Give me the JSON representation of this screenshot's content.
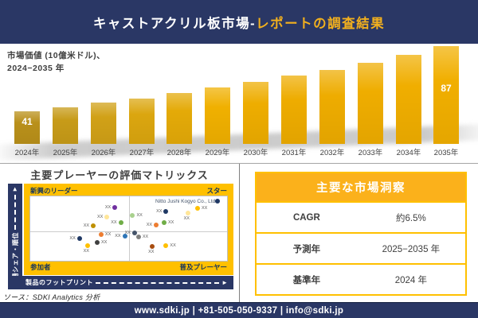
{
  "header": {
    "title_main": "キャストアクリル板市場-",
    "title_accent": "レポートの調査結果"
  },
  "bar_chart_label": {
    "line1": "市場価値 (10億米ドル)、",
    "line2": "2024−2035 年"
  },
  "matrix": {
    "title": "主要プレーヤーの評価マトリックス",
    "y_axis_label": "市場シェア・順位",
    "x_axis_label": "製品のフットプリント",
    "quadrants": {
      "top_left": "新興のリーダー",
      "top_right": "スター",
      "bottom_left": "参加者",
      "bottom_right": "普及プレーヤー"
    },
    "company_label": "Nitto Jushi Kogyo Co., Ltd."
  },
  "insights": {
    "title": "主要な市場洞察",
    "rows": [
      {
        "label": "CAGR",
        "value": "約6.5%"
      },
      {
        "label": "予測年",
        "value": "2025−2035 年"
      },
      {
        "label": "基準年",
        "value": "2024 年"
      }
    ]
  },
  "source": {
    "text": "ソース：SDKI Analytics 分析"
  },
  "footer": {
    "text": "www.sdki.jp | +81-505-050-9337 | info@sdki.jp"
  },
  "icons": {
    "axis_arrow": "►"
  },
  "colors": {
    "navy": "#2A3765",
    "matrix_gold": "#FFC000",
    "table_header_gold": "#FBB11B",
    "title_accent_gold": "#F2B01E",
    "divider_gray": "#9A9A9A",
    "text_dark": "#3F3F3F",
    "quadrant_text_navy": "#17365D",
    "bar_label_white": "#FFFFFF"
  },
  "chart_data": [
    {
      "type": "bar",
      "title": "市場価値 (10億米ドル)、2024−2035 年",
      "xlabel": "年",
      "ylabel": "市場価値 (10億米ドル)",
      "categories": [
        "2024年",
        "2025年",
        "2026年",
        "2027年",
        "2028年",
        "2029年",
        "2030年",
        "2031年",
        "2032年",
        "2033年",
        "2034年",
        "2035年"
      ],
      "values": [
        41,
        44,
        47,
        50,
        54,
        58,
        62,
        66,
        70,
        75,
        81,
        87
      ],
      "values_estimated": true,
      "first_label": "41",
      "last_label": "87",
      "bar_colors": [
        "#B9901A",
        "#C79B18",
        "#D1A117",
        "#DBA60F",
        "#E4AA08",
        "#F0B000",
        "#EEAD00",
        "#EEAC00",
        "#EEAC00",
        "#EFAD00",
        "#F0AE00",
        "#F1AF00"
      ],
      "grid": false,
      "legend": false
    },
    {
      "type": "scatter",
      "title": "主要プレーヤーの評価マトリックス",
      "xlabel": "製品のフットプリント",
      "ylabel": "市場シェア・順位",
      "quadrant_labels": [
        "新興のリーダー",
        "スター",
        "参加者",
        "普及プレーヤー"
      ],
      "annotation": "Nitto Jushi Kogyo Co., Ltd.",
      "points": [
        {
          "x": 43,
          "y": 17,
          "color": "#7030A0",
          "label": "XX",
          "label_pos": "left"
        },
        {
          "x": 95,
          "y": 8,
          "color": "#1F3864",
          "label": "",
          "label_pos": "none"
        },
        {
          "x": 85,
          "y": 19,
          "color": "#FFC000",
          "label": "XX",
          "label_pos": "right"
        },
        {
          "x": 80,
          "y": 26,
          "color": "#FFE699",
          "label": "XX",
          "label_pos": "below"
        },
        {
          "x": 69,
          "y": 23,
          "color": "#1F3864",
          "label": "XX",
          "label_pos": "left"
        },
        {
          "x": 52,
          "y": 30,
          "color": "#A9D18E",
          "label": "XX",
          "label_pos": "right"
        },
        {
          "x": 64,
          "y": 45,
          "color": "#ED7D31",
          "label": "XX",
          "label_pos": "left"
        },
        {
          "x": 68,
          "y": 41,
          "color": "#70AD47",
          "label": "XX",
          "label_pos": "right"
        },
        {
          "x": 39,
          "y": 32,
          "color": "#FFE699",
          "label": "XX",
          "label_pos": "left"
        },
        {
          "x": 32,
          "y": 46,
          "color": "#BF9000",
          "label": "XX",
          "label_pos": "left"
        },
        {
          "x": 46,
          "y": 41,
          "color": "#70AD47",
          "label": "XX",
          "label_pos": "left"
        },
        {
          "x": 36,
          "y": 59,
          "color": "#ED7D31",
          "label": "XX",
          "label_pos": "right"
        },
        {
          "x": 48,
          "y": 62,
          "color": "#2E75B6",
          "label": "XX",
          "label_pos": "left"
        },
        {
          "x": 53,
          "y": 57,
          "color": "#44546A",
          "label": "XX",
          "label_pos": "left"
        },
        {
          "x": 55,
          "y": 63,
          "color": "#7F7F7F",
          "label": "XX",
          "label_pos": "right"
        },
        {
          "x": 25,
          "y": 66,
          "color": "#1F3864",
          "label": "XX",
          "label_pos": "left"
        },
        {
          "x": 29,
          "y": 76,
          "color": "#FFC000",
          "label": "XX",
          "label_pos": "below"
        },
        {
          "x": 34,
          "y": 72,
          "color": "#404040",
          "label": "XX",
          "label_pos": "right"
        },
        {
          "x": 62,
          "y": 78,
          "color": "#A84D10",
          "label": "XX",
          "label_pos": "below"
        },
        {
          "x": 69,
          "y": 77,
          "color": "#FFC000",
          "label": "XX",
          "label_pos": "right"
        }
      ]
    },
    {
      "type": "table",
      "title": "主要な市場洞察",
      "rows": [
        [
          "CAGR",
          "約6.5%"
        ],
        [
          "予測年",
          "2025−2035 年"
        ],
        [
          "基準年",
          "2024 年"
        ]
      ]
    }
  ]
}
